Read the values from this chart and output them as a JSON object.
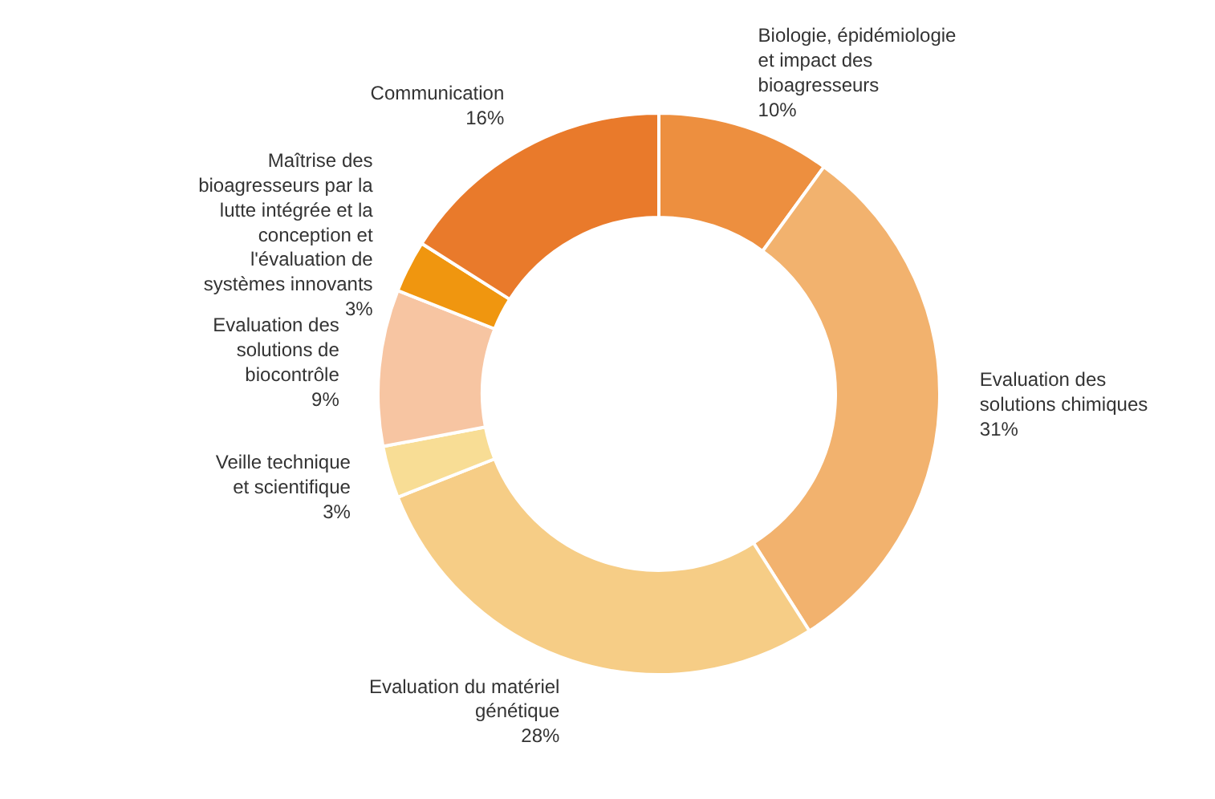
{
  "chart_data": {
    "type": "donut",
    "categories": [
      "Biologie, épidémiologie\net impact des\nbioagresseurs",
      "Evaluation des\nsolutions chimiques",
      "Evaluation du matériel\ngénétique",
      "Veille technique\net scientifique",
      "Evaluation des\nsolutions de\nbiocontrôle",
      "Maîtrise des\nbioagresseurs par la\nlutte intégrée et la\nconception et\nl'évaluation de\nsystèmes innovants",
      "Communication"
    ],
    "values": [
      10,
      31,
      28,
      3,
      9,
      3,
      16
    ],
    "value_labels": [
      "10%",
      "31%",
      "28%",
      "3%",
      "9%",
      "3%",
      "16%"
    ],
    "colors": [
      "#ed8f3f",
      "#f2b26e",
      "#f6cd86",
      "#f8dd95",
      "#f7c5a2",
      "#f0960f",
      "#e97a2b"
    ],
    "legend": false
  }
}
